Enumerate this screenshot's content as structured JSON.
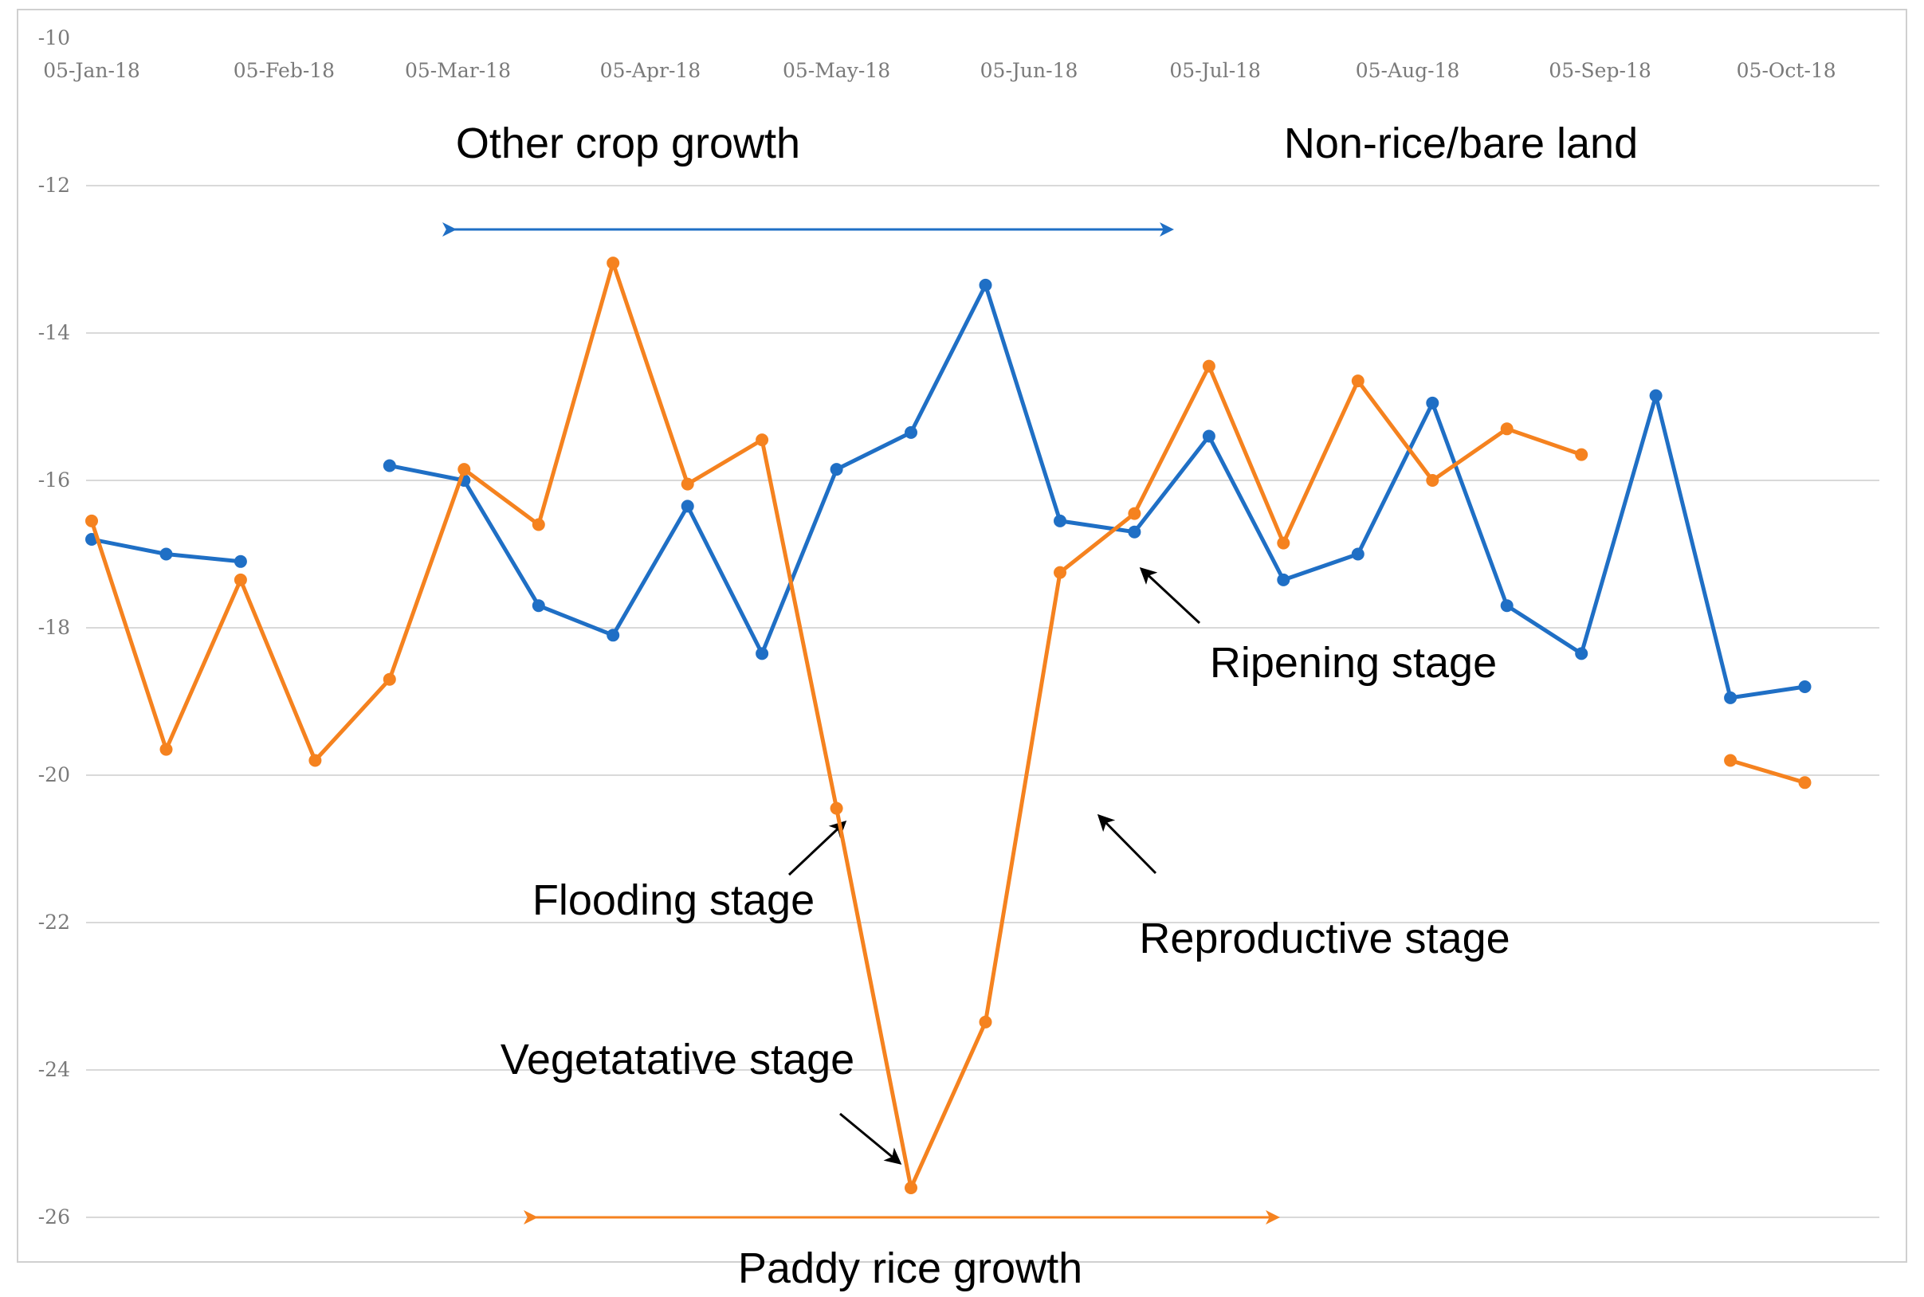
{
  "chart_data": {
    "type": "line",
    "title": "",
    "xlabel": "",
    "ylabel": "",
    "ylim": [
      -26,
      -10
    ],
    "yticks": [
      -10,
      -12,
      -14,
      -16,
      -18,
      -20,
      -22,
      -24,
      -26
    ],
    "x_tick_labels": [
      "05-Jan-18",
      "05-Feb-18",
      "05-Mar-18",
      "05-Apr-18",
      "05-May-18",
      "05-Jun-18",
      "05-Jul-18",
      "05-Aug-18",
      "05-Sep-18",
      "05-Oct-18"
    ],
    "x_ticks_day_offset": [
      0,
      31,
      59,
      90,
      120,
      151,
      181,
      212,
      243,
      273
    ],
    "x_range_days": [
      0,
      288
    ],
    "legend": "none",
    "grid": true,
    "series": [
      {
        "name": "Non-rice",
        "color": "#1f6fc5",
        "points": [
          [
            0,
            -16.8
          ],
          [
            12,
            -17.0
          ],
          [
            24,
            -17.1
          ],
          null,
          [
            48,
            -15.8
          ],
          [
            60,
            -16.0
          ],
          [
            72,
            -17.7
          ],
          [
            84,
            -18.1
          ],
          [
            96,
            -16.35
          ],
          [
            108,
            -18.35
          ],
          [
            120,
            -15.85
          ],
          [
            132,
            -15.35
          ],
          [
            144,
            -13.35
          ],
          [
            156,
            -16.55
          ],
          [
            168,
            -16.7
          ],
          [
            180,
            -15.4
          ],
          [
            192,
            -17.35
          ],
          [
            204,
            -17.0
          ],
          [
            216,
            -14.95
          ],
          [
            228,
            -17.7
          ],
          [
            240,
            -18.35
          ],
          [
            252,
            -14.85
          ],
          [
            264,
            -18.95
          ],
          [
            276,
            -18.8
          ]
        ]
      },
      {
        "name": "Paddy rice",
        "color": "#f5821f",
        "points": [
          [
            0,
            -16.55
          ],
          [
            12,
            -19.65
          ],
          [
            24,
            -17.35
          ],
          [
            36,
            -19.8
          ],
          [
            48,
            -18.7
          ],
          [
            60,
            -15.85
          ],
          [
            72,
            -16.6
          ],
          [
            84,
            -13.05
          ],
          [
            96,
            -16.05
          ],
          [
            108,
            -15.45
          ],
          [
            120,
            -20.45
          ],
          [
            132,
            -25.6
          ],
          [
            144,
            -23.35
          ],
          [
            156,
            -17.25
          ],
          [
            168,
            -16.45
          ],
          [
            180,
            -14.45
          ],
          [
            192,
            -16.85
          ],
          [
            204,
            -14.65
          ],
          [
            216,
            -16.0
          ],
          [
            228,
            -15.3
          ],
          [
            240,
            -15.65
          ],
          null,
          [
            264,
            -19.8
          ],
          [
            276,
            -20.1
          ]
        ]
      }
    ],
    "annotations": {
      "other_crop_growth": "Other crop growth",
      "non_rice_bare_land": "Non-rice/bare land",
      "ripening_stage": "Ripening stage",
      "flooding_stage": "Flooding stage",
      "reproductive_stage": "Reproductive stage",
      "vegetative_stage": "Vegetatative stage",
      "paddy_rice_growth": "Paddy rice growth"
    },
    "arrow_colors": {
      "blue_span": "#1f6fc5",
      "orange_span": "#f5821f",
      "pointer": "#000000"
    }
  }
}
